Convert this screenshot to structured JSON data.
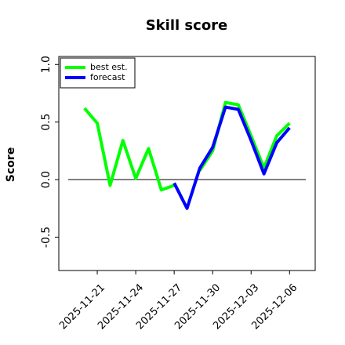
{
  "chart_data": {
    "type": "line",
    "title": "Skill score",
    "y_label": "Score",
    "x": [
      "2025-11-20",
      "2025-11-21",
      "2025-11-22",
      "2025-11-23",
      "2025-11-24",
      "2025-11-25",
      "2025-11-26",
      "2025-11-27",
      "2025-11-28",
      "2025-11-29",
      "2025-11-30",
      "2025-12-01",
      "2025-12-02",
      "2025-12-03",
      "2025-12-04",
      "2025-12-05",
      "2025-12-06"
    ],
    "series": [
      {
        "name": "best est.",
        "color": "#00ff00",
        "values": [
          0.62,
          0.49,
          -0.05,
          0.34,
          0.01,
          0.27,
          -0.09,
          -0.05,
          null,
          0.08,
          0.25,
          0.67,
          0.65,
          0.38,
          0.1,
          0.38,
          0.49
        ]
      },
      {
        "name": "forecast",
        "color": "#0000ff",
        "values": [
          null,
          null,
          null,
          null,
          null,
          null,
          null,
          -0.03,
          -0.25,
          0.1,
          0.28,
          0.63,
          0.61,
          0.34,
          0.05,
          0.32,
          0.45
        ]
      }
    ],
    "xlim": [
      "2025-11-18",
      "2025-12-08"
    ],
    "xticks": [
      "2025-11-21",
      "2025-11-24",
      "2025-11-27",
      "2025-11-30",
      "2025-12-03",
      "2025-12-06"
    ],
    "xtick_colors": [
      "#000000",
      "#000000",
      "#008000",
      "#000000",
      "#000000",
      "#000000"
    ],
    "ylim": [
      -0.79,
      1.07
    ],
    "yticks": [
      -0.5,
      {
        "value": 0,
        "label": "0.0"
      },
      0.5,
      {
        "value": 1,
        "label": "1.0"
      }
    ],
    "hline": 0,
    "legend": "upper left"
  }
}
